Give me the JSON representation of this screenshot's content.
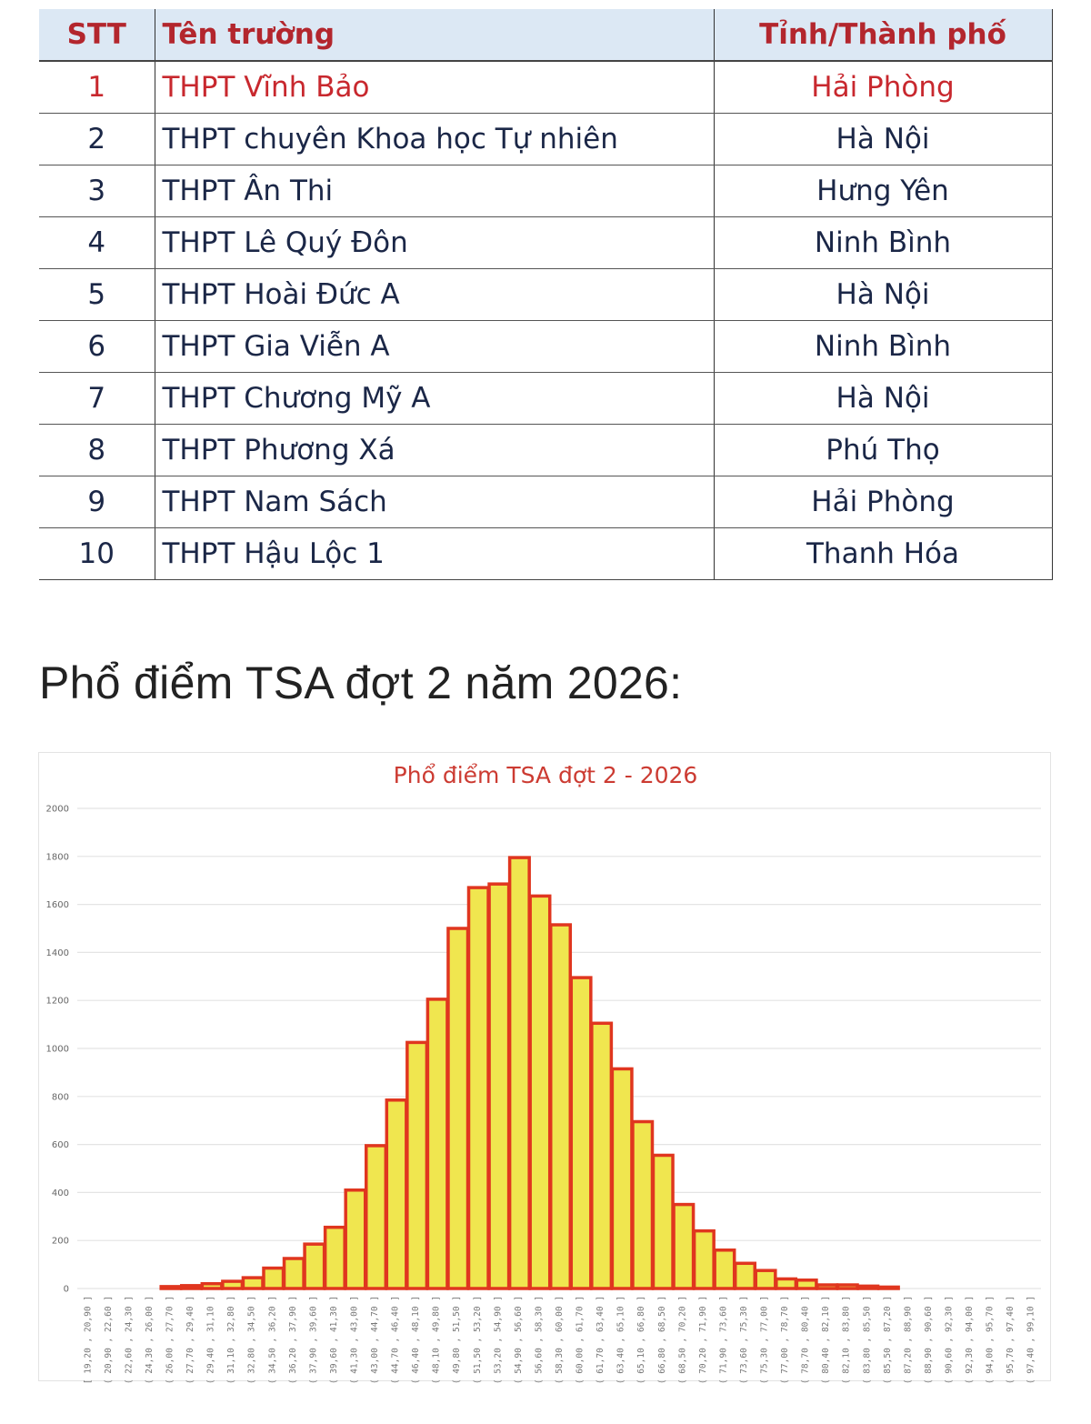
{
  "ranking_table": {
    "headers": {
      "stt": "STT",
      "name": "Tên trường",
      "province": "Tỉnh/Thành phố"
    },
    "rows": [
      {
        "stt": "1",
        "name": "THPT Vĩnh Bảo",
        "province": "Hải Phòng",
        "highlight": true
      },
      {
        "stt": "2",
        "name": "THPT chuyên Khoa học Tự nhiên",
        "province": "Hà Nội"
      },
      {
        "stt": "3",
        "name": "THPT Ân Thi",
        "province": "Hưng Yên"
      },
      {
        "stt": "4",
        "name": "THPT Lê Quý Đôn",
        "province": "Ninh Bình"
      },
      {
        "stt": "5",
        "name": "THPT Hoài Đức A",
        "province": "Hà Nội"
      },
      {
        "stt": "6",
        "name": "THPT Gia Viễn A",
        "province": "Ninh Bình"
      },
      {
        "stt": "7",
        "name": "THPT Chương Mỹ A",
        "province": "Hà Nội"
      },
      {
        "stt": "8",
        "name": "THPT Phương Xá",
        "province": "Phú Thọ"
      },
      {
        "stt": "9",
        "name": "THPT Nam Sách",
        "province": "Hải Phòng"
      },
      {
        "stt": "10",
        "name": "THPT Hậu Lộc 1",
        "province": "Thanh Hóa"
      }
    ]
  },
  "section_heading": "Phổ điểm TSA đợt 2 năm 2026:",
  "colors": {
    "bar_fill": "#f0e64f",
    "bar_stroke": "#e0361f",
    "title": "#cc3b32",
    "header_bg": "#dce8f4",
    "header_text": "#b3262d",
    "highlight_text": "#c8282e",
    "body_text": "#1b2747"
  },
  "chart_data": {
    "type": "bar",
    "title": "Phổ điểm TSA đợt 2 - 2026",
    "xlabel": "",
    "ylabel": "",
    "ylim": [
      0,
      2000
    ],
    "yticks": [
      0,
      200,
      400,
      600,
      800,
      1000,
      1200,
      1400,
      1600,
      1800,
      2000
    ],
    "grid": true,
    "legend": "none",
    "categories": [
      "[ 19,20 , 20,90 ]",
      "( 20,90 , 22,60 ]",
      "( 22,60 , 24,30 ]",
      "( 24,30 , 26,00 ]",
      "( 26,00 , 27,70 ]",
      "( 27,70 , 29,40 ]",
      "( 29,40 , 31,10 ]",
      "( 31,10 , 32,80 ]",
      "( 32,80 , 34,50 ]",
      "( 34,50 , 36,20 ]",
      "( 36,20 , 37,90 ]",
      "( 37,90 , 39,60 ]",
      "( 39,60 , 41,30 ]",
      "( 41,30 , 43,00 ]",
      "( 43,00 , 44,70 ]",
      "( 44,70 , 46,40 ]",
      "( 46,40 , 48,10 ]",
      "( 48,10 , 49,80 ]",
      "( 49,80 , 51,50 ]",
      "( 51,50 , 53,20 ]",
      "( 53,20 , 54,90 ]",
      "( 54,90 , 56,60 ]",
      "( 56,60 , 58,30 ]",
      "( 58,30 , 60,00 ]",
      "( 60,00 , 61,70 ]",
      "( 61,70 , 63,40 ]",
      "( 63,40 , 65,10 ]",
      "( 65,10 , 66,80 ]",
      "( 66,80 , 68,50 ]",
      "( 68,50 , 70,20 ]",
      "( 70,20 , 71,90 ]",
      "( 71,90 , 73,60 ]",
      "( 73,60 , 75,30 ]",
      "( 75,30 , 77,00 ]",
      "( 77,00 , 78,70 ]",
      "( 78,70 , 80,40 ]",
      "( 80,40 , 82,10 ]",
      "( 82,10 , 83,80 ]",
      "( 83,80 , 85,50 ]",
      "( 85,50 , 87,20 ]",
      "( 87,20 , 88,90 ]",
      "( 88,90 , 90,60 ]",
      "( 90,60 , 92,30 ]",
      "( 92,30 , 94,00 ]",
      "( 94,00 , 95,70 ]",
      "( 95,70 , 97,40 ]",
      "( 97,40 , 99,10 ]"
    ],
    "values": [
      0,
      0,
      0,
      0,
      8,
      12,
      20,
      30,
      45,
      85,
      125,
      185,
      255,
      410,
      595,
      785,
      1025,
      1205,
      1500,
      1670,
      1685,
      1795,
      1635,
      1515,
      1295,
      1105,
      915,
      695,
      555,
      350,
      240,
      160,
      105,
      75,
      40,
      35,
      15,
      15,
      10,
      6,
      0,
      0,
      0,
      0,
      0,
      0,
      0
    ]
  }
}
